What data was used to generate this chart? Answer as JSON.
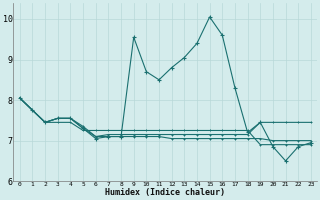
{
  "xlabel": "Humidex (Indice chaleur)",
  "background_color": "#d4ecec",
  "grid_color": "#b8d8d8",
  "line_color": "#1a7070",
  "xlim": [
    -0.5,
    23.5
  ],
  "ylim": [
    6.0,
    10.4
  ],
  "yticks": [
    6,
    7,
    8,
    9,
    10
  ],
  "xticks": [
    0,
    1,
    2,
    3,
    4,
    5,
    6,
    7,
    8,
    9,
    10,
    11,
    12,
    13,
    14,
    15,
    16,
    17,
    18,
    19,
    20,
    21,
    22,
    23
  ],
  "line1_x": [
    0,
    1,
    2,
    3,
    4,
    5,
    6,
    7,
    8,
    9,
    10,
    11,
    12,
    13,
    14,
    15,
    16,
    17,
    18,
    19,
    20,
    21,
    22,
    23
  ],
  "line1_y": [
    8.05,
    7.75,
    7.45,
    7.55,
    7.55,
    7.3,
    7.05,
    7.1,
    7.1,
    9.55,
    8.7,
    8.5,
    8.8,
    9.05,
    9.4,
    10.05,
    9.6,
    8.3,
    7.2,
    7.45,
    6.85,
    6.5,
    6.85,
    6.95
  ],
  "line2_x": [
    0,
    1,
    2,
    3,
    4,
    5,
    6,
    7,
    8,
    9,
    10,
    11,
    12,
    13,
    14,
    15,
    16,
    17,
    18,
    19,
    20,
    21,
    22,
    23
  ],
  "line2_y": [
    8.05,
    7.75,
    7.45,
    7.55,
    7.55,
    7.35,
    7.1,
    7.15,
    7.15,
    7.15,
    7.15,
    7.15,
    7.15,
    7.15,
    7.15,
    7.15,
    7.15,
    7.15,
    7.15,
    7.45,
    7.45,
    7.45,
    7.45,
    7.45
  ],
  "line3_x": [
    0,
    1,
    2,
    3,
    4,
    5,
    6,
    7,
    8,
    9,
    10,
    11,
    12,
    13,
    14,
    15,
    16,
    17,
    18,
    19,
    20,
    21,
    22,
    23
  ],
  "line3_y": [
    8.05,
    7.75,
    7.45,
    7.55,
    7.55,
    7.3,
    7.1,
    7.1,
    7.1,
    7.1,
    7.1,
    7.1,
    7.05,
    7.05,
    7.05,
    7.05,
    7.05,
    7.05,
    7.05,
    7.05,
    7.0,
    7.0,
    7.0,
    7.0
  ],
  "line4_x": [
    0,
    1,
    2,
    3,
    4,
    5,
    6,
    7,
    8,
    9,
    10,
    11,
    12,
    13,
    14,
    15,
    16,
    17,
    18,
    19,
    20,
    21,
    22,
    23
  ],
  "line4_y": [
    8.05,
    7.75,
    7.45,
    7.45,
    7.45,
    7.25,
    7.25,
    7.25,
    7.25,
    7.25,
    7.25,
    7.25,
    7.25,
    7.25,
    7.25,
    7.25,
    7.25,
    7.25,
    7.25,
    6.9,
    6.9,
    6.9,
    6.9,
    6.9
  ]
}
